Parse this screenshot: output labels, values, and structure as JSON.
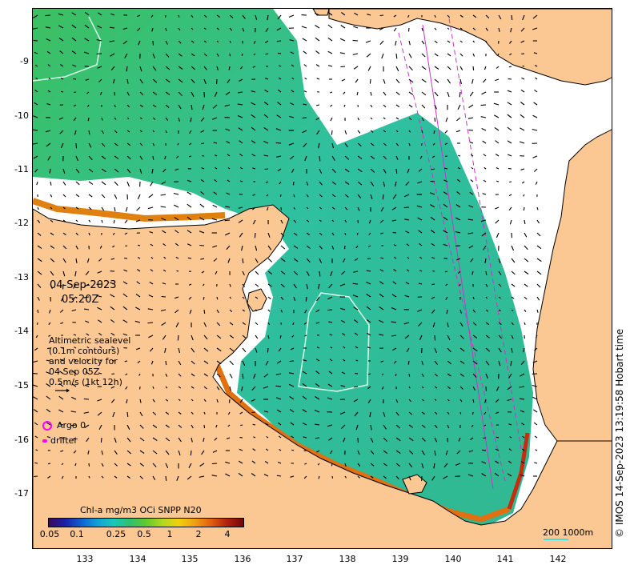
{
  "date_label": "04-Sep-2023",
  "time_label": "05:20Z",
  "legend": {
    "lines": [
      "Altimetric sealevel",
      "(0.1m contours)",
      "and velocity for",
      "04 Sep 05Z",
      "0.5m/s (1kt 12h)"
    ],
    "argo_label": "Argo 0",
    "drifter_label": "drifter",
    "argo_color": "#ff00ff"
  },
  "colorbar": {
    "title": "Chl-a mg/m3 OCi SNPP N20",
    "ticks": [
      "0.05",
      "0.1",
      "0.25",
      "0.5",
      "1",
      "2",
      "4"
    ]
  },
  "axes": {
    "lat_labels": [
      "-9",
      "-10",
      "-11",
      "-12",
      "-13",
      "-14",
      "-15",
      "-16",
      "-17"
    ],
    "lon_labels": [
      "133",
      "134",
      "135",
      "136",
      "137",
      "138",
      "139",
      "140",
      "141",
      "142"
    ]
  },
  "credit": "© IMOS 14-Sep-2023 13:19:58 Hobart time",
  "scale": {
    "label": "200  1000m"
  },
  "colors": {
    "land": "#fbc894",
    "water_chl": "#3fbf6f",
    "track": "#cc33cc"
  }
}
